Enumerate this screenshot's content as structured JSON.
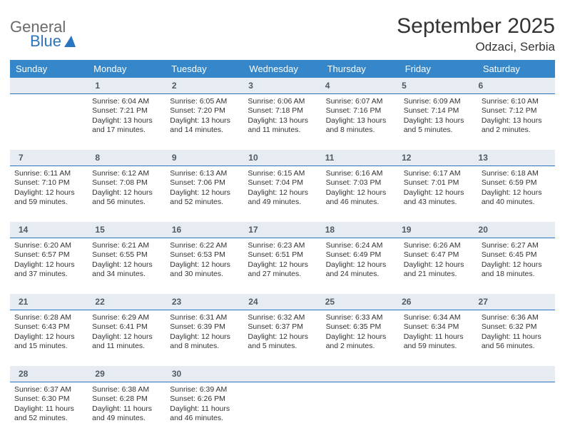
{
  "brand": {
    "name_top": "General",
    "name_bottom": "Blue"
  },
  "title": "September 2025",
  "location": "Odzaci, Serbia",
  "colors": {
    "header_bg": "#3687c9",
    "daynum_bg": "#e6ecf2",
    "daynum_border": "#2b74c0",
    "text": "#333333",
    "brand_gray": "#6a6a6a",
    "brand_blue": "#2b74c0"
  },
  "weekdays": [
    "Sunday",
    "Monday",
    "Tuesday",
    "Wednesday",
    "Thursday",
    "Friday",
    "Saturday"
  ],
  "weeks": [
    [
      {
        "n": "",
        "sr": "",
        "ss": "",
        "dl1": "",
        "dl2": ""
      },
      {
        "n": "1",
        "sr": "Sunrise: 6:04 AM",
        "ss": "Sunset: 7:21 PM",
        "dl1": "Daylight: 13 hours",
        "dl2": "and 17 minutes."
      },
      {
        "n": "2",
        "sr": "Sunrise: 6:05 AM",
        "ss": "Sunset: 7:20 PM",
        "dl1": "Daylight: 13 hours",
        "dl2": "and 14 minutes."
      },
      {
        "n": "3",
        "sr": "Sunrise: 6:06 AM",
        "ss": "Sunset: 7:18 PM",
        "dl1": "Daylight: 13 hours",
        "dl2": "and 11 minutes."
      },
      {
        "n": "4",
        "sr": "Sunrise: 6:07 AM",
        "ss": "Sunset: 7:16 PM",
        "dl1": "Daylight: 13 hours",
        "dl2": "and 8 minutes."
      },
      {
        "n": "5",
        "sr": "Sunrise: 6:09 AM",
        "ss": "Sunset: 7:14 PM",
        "dl1": "Daylight: 13 hours",
        "dl2": "and 5 minutes."
      },
      {
        "n": "6",
        "sr": "Sunrise: 6:10 AM",
        "ss": "Sunset: 7:12 PM",
        "dl1": "Daylight: 13 hours",
        "dl2": "and 2 minutes."
      }
    ],
    [
      {
        "n": "7",
        "sr": "Sunrise: 6:11 AM",
        "ss": "Sunset: 7:10 PM",
        "dl1": "Daylight: 12 hours",
        "dl2": "and 59 minutes."
      },
      {
        "n": "8",
        "sr": "Sunrise: 6:12 AM",
        "ss": "Sunset: 7:08 PM",
        "dl1": "Daylight: 12 hours",
        "dl2": "and 56 minutes."
      },
      {
        "n": "9",
        "sr": "Sunrise: 6:13 AM",
        "ss": "Sunset: 7:06 PM",
        "dl1": "Daylight: 12 hours",
        "dl2": "and 52 minutes."
      },
      {
        "n": "10",
        "sr": "Sunrise: 6:15 AM",
        "ss": "Sunset: 7:04 PM",
        "dl1": "Daylight: 12 hours",
        "dl2": "and 49 minutes."
      },
      {
        "n": "11",
        "sr": "Sunrise: 6:16 AM",
        "ss": "Sunset: 7:03 PM",
        "dl1": "Daylight: 12 hours",
        "dl2": "and 46 minutes."
      },
      {
        "n": "12",
        "sr": "Sunrise: 6:17 AM",
        "ss": "Sunset: 7:01 PM",
        "dl1": "Daylight: 12 hours",
        "dl2": "and 43 minutes."
      },
      {
        "n": "13",
        "sr": "Sunrise: 6:18 AM",
        "ss": "Sunset: 6:59 PM",
        "dl1": "Daylight: 12 hours",
        "dl2": "and 40 minutes."
      }
    ],
    [
      {
        "n": "14",
        "sr": "Sunrise: 6:20 AM",
        "ss": "Sunset: 6:57 PM",
        "dl1": "Daylight: 12 hours",
        "dl2": "and 37 minutes."
      },
      {
        "n": "15",
        "sr": "Sunrise: 6:21 AM",
        "ss": "Sunset: 6:55 PM",
        "dl1": "Daylight: 12 hours",
        "dl2": "and 34 minutes."
      },
      {
        "n": "16",
        "sr": "Sunrise: 6:22 AM",
        "ss": "Sunset: 6:53 PM",
        "dl1": "Daylight: 12 hours",
        "dl2": "and 30 minutes."
      },
      {
        "n": "17",
        "sr": "Sunrise: 6:23 AM",
        "ss": "Sunset: 6:51 PM",
        "dl1": "Daylight: 12 hours",
        "dl2": "and 27 minutes."
      },
      {
        "n": "18",
        "sr": "Sunrise: 6:24 AM",
        "ss": "Sunset: 6:49 PM",
        "dl1": "Daylight: 12 hours",
        "dl2": "and 24 minutes."
      },
      {
        "n": "19",
        "sr": "Sunrise: 6:26 AM",
        "ss": "Sunset: 6:47 PM",
        "dl1": "Daylight: 12 hours",
        "dl2": "and 21 minutes."
      },
      {
        "n": "20",
        "sr": "Sunrise: 6:27 AM",
        "ss": "Sunset: 6:45 PM",
        "dl1": "Daylight: 12 hours",
        "dl2": "and 18 minutes."
      }
    ],
    [
      {
        "n": "21",
        "sr": "Sunrise: 6:28 AM",
        "ss": "Sunset: 6:43 PM",
        "dl1": "Daylight: 12 hours",
        "dl2": "and 15 minutes."
      },
      {
        "n": "22",
        "sr": "Sunrise: 6:29 AM",
        "ss": "Sunset: 6:41 PM",
        "dl1": "Daylight: 12 hours",
        "dl2": "and 11 minutes."
      },
      {
        "n": "23",
        "sr": "Sunrise: 6:31 AM",
        "ss": "Sunset: 6:39 PM",
        "dl1": "Daylight: 12 hours",
        "dl2": "and 8 minutes."
      },
      {
        "n": "24",
        "sr": "Sunrise: 6:32 AM",
        "ss": "Sunset: 6:37 PM",
        "dl1": "Daylight: 12 hours",
        "dl2": "and 5 minutes."
      },
      {
        "n": "25",
        "sr": "Sunrise: 6:33 AM",
        "ss": "Sunset: 6:35 PM",
        "dl1": "Daylight: 12 hours",
        "dl2": "and 2 minutes."
      },
      {
        "n": "26",
        "sr": "Sunrise: 6:34 AM",
        "ss": "Sunset: 6:34 PM",
        "dl1": "Daylight: 11 hours",
        "dl2": "and 59 minutes."
      },
      {
        "n": "27",
        "sr": "Sunrise: 6:36 AM",
        "ss": "Sunset: 6:32 PM",
        "dl1": "Daylight: 11 hours",
        "dl2": "and 56 minutes."
      }
    ],
    [
      {
        "n": "28",
        "sr": "Sunrise: 6:37 AM",
        "ss": "Sunset: 6:30 PM",
        "dl1": "Daylight: 11 hours",
        "dl2": "and 52 minutes."
      },
      {
        "n": "29",
        "sr": "Sunrise: 6:38 AM",
        "ss": "Sunset: 6:28 PM",
        "dl1": "Daylight: 11 hours",
        "dl2": "and 49 minutes."
      },
      {
        "n": "30",
        "sr": "Sunrise: 6:39 AM",
        "ss": "Sunset: 6:26 PM",
        "dl1": "Daylight: 11 hours",
        "dl2": "and 46 minutes."
      },
      {
        "n": "",
        "sr": "",
        "ss": "",
        "dl1": "",
        "dl2": ""
      },
      {
        "n": "",
        "sr": "",
        "ss": "",
        "dl1": "",
        "dl2": ""
      },
      {
        "n": "",
        "sr": "",
        "ss": "",
        "dl1": "",
        "dl2": ""
      },
      {
        "n": "",
        "sr": "",
        "ss": "",
        "dl1": "",
        "dl2": ""
      }
    ]
  ]
}
